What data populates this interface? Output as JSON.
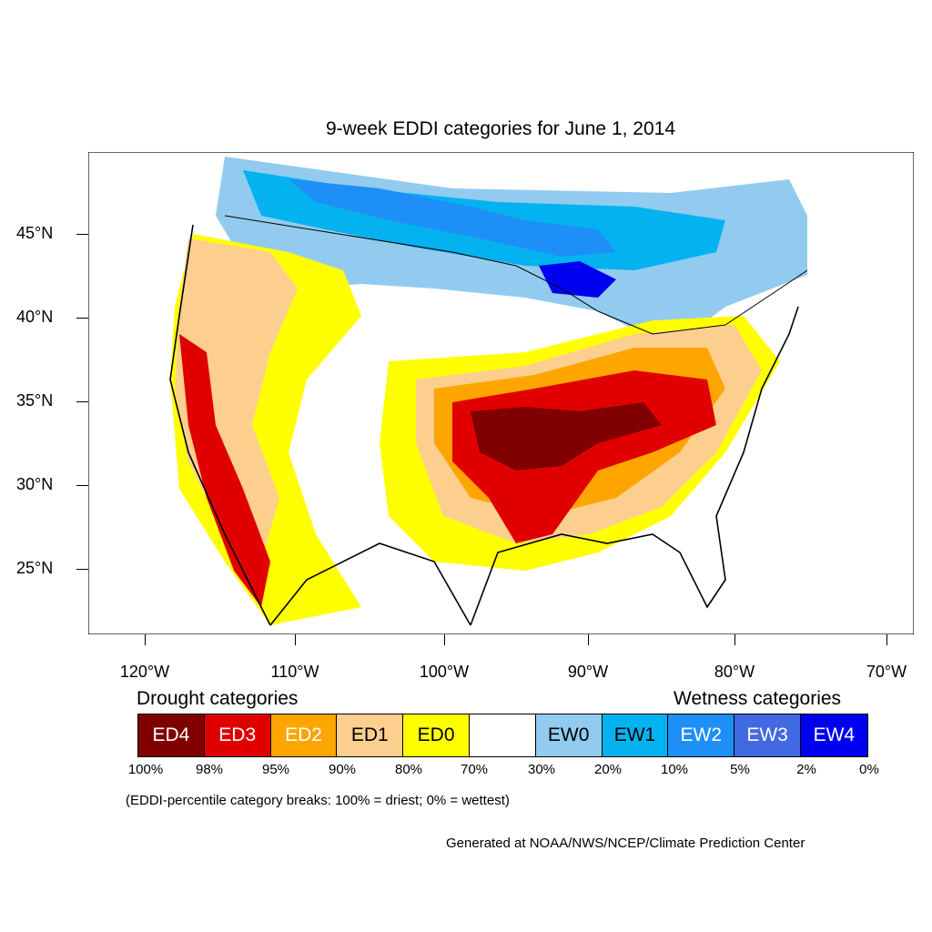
{
  "title": "9-week EDDI categories for June 1, 2014",
  "lat_labels": [
    "45°N",
    "40°N",
    "35°N",
    "30°N",
    "25°N"
  ],
  "lon_labels": [
    "120°W",
    "110°W",
    "100°W",
    "90°W",
    "80°W",
    "70°W"
  ],
  "legend": {
    "drought_heading": "Drought categories",
    "wetness_heading": "Wetness categories",
    "categories": [
      {
        "label": "ED4",
        "color": "#800000"
      },
      {
        "label": "ED3",
        "color": "#e00000"
      },
      {
        "label": "ED2",
        "color": "#ffa500"
      },
      {
        "label": "ED1",
        "color": "#fccf8f"
      },
      {
        "label": "ED0",
        "color": "#ffff00"
      },
      {
        "label": "",
        "color": "#ffffff"
      },
      {
        "label": "EW0",
        "color": "#92cbef"
      },
      {
        "label": "EW1",
        "color": "#05b2f0"
      },
      {
        "label": "EW2",
        "color": "#1e8ff6"
      },
      {
        "label": "EW3",
        "color": "#4169e1"
      },
      {
        "label": "EW4",
        "color": "#0000f0"
      }
    ],
    "percentiles": [
      "100%",
      "98%",
      "95%",
      "90%",
      "80%",
      "70%",
      "30%",
      "20%",
      "10%",
      "5%",
      "2%",
      "0%"
    ]
  },
  "note": "(EDDI-percentile category breaks: 100% = driest; 0% = wettest)",
  "credit": "Generated at NOAA/NWS/NCEP/Climate Prediction Center"
}
